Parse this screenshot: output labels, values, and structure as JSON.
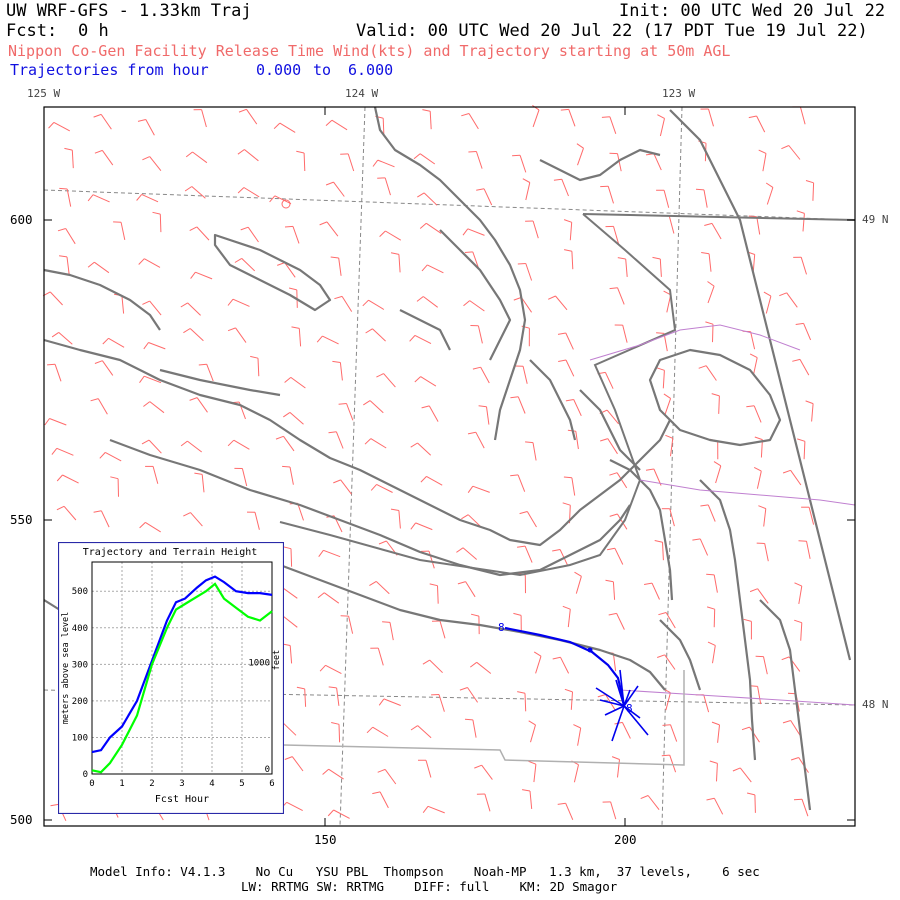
{
  "header": {
    "model_title": "UW WRF-GFS - 1.33km Traj",
    "init": "Init: 00 UTC Wed 20 Jul 22",
    "fcst_label": "Fcst:",
    "fcst_value": "0 h",
    "valid": "Valid: 00 UTC Wed 20 Jul 22 (17 PDT Tue 19 Jul 22)",
    "release_line": "Nippon Co-Gen Facility Release Time Wind(kts) and Trajectory starting at 50m AGL",
    "traj_line": "Trajectories from hour",
    "traj_from": "0.000",
    "traj_to_word": "to",
    "traj_to": "6.000"
  },
  "map": {
    "lon_labels": [
      "125 W",
      "124 W",
      "123 W"
    ],
    "lat_labels": [
      "49 N",
      "48 N"
    ],
    "y_ticks": [
      "600",
      "550",
      "500"
    ],
    "x_ticks": [
      "150",
      "200"
    ],
    "traj_marker_start": "8",
    "traj_marker_end": "8"
  },
  "inset": {
    "title": "Trajectory and Terrain Height",
    "y_label": "meters above sea level",
    "y2_label": "feet",
    "y2_tick": "1000",
    "y2_zero": "0",
    "x_label": "Fcst Hour",
    "y_ticks": [
      "0",
      "100",
      "200",
      "300",
      "400",
      "500"
    ],
    "x_ticks": [
      "0",
      "1",
      "2",
      "3",
      "4",
      "5",
      "6"
    ]
  },
  "chart_data": {
    "type": "line",
    "title": "Trajectory and Terrain Height",
    "xlabel": "Fcst Hour",
    "ylabel": "meters above sea level",
    "xlim": [
      0,
      6
    ],
    "ylim": [
      0,
      580
    ],
    "grid": true,
    "series": [
      {
        "color": "#0000ff",
        "x": [
          0,
          0.3,
          0.6,
          1.0,
          1.5,
          2.0,
          2.5,
          2.8,
          3.1,
          3.5,
          3.8,
          4.1,
          4.4,
          4.8,
          5.2,
          5.6,
          6.0
        ],
        "y": [
          60,
          65,
          100,
          130,
          200,
          310,
          420,
          470,
          480,
          510,
          530,
          540,
          525,
          500,
          495,
          495,
          490
        ]
      },
      {
        "color": "#00ff00",
        "x": [
          0,
          0.3,
          0.6,
          1.0,
          1.5,
          2.0,
          2.5,
          2.8,
          3.1,
          3.5,
          3.8,
          4.1,
          4.4,
          4.8,
          5.2,
          5.6,
          6.0
        ],
        "y": [
          10,
          5,
          30,
          80,
          160,
          300,
          400,
          450,
          465,
          485,
          500,
          520,
          480,
          455,
          430,
          420,
          445
        ]
      }
    ]
  },
  "footer": {
    "line1": "Model Info: V4.1.3    No Cu   YSU PBL  Thompson    Noah-MP   1.3 km,  37 levels,    6 sec",
    "line2": "LW: RRTMG SW: RRTMG    DIFF: full    KM: 2D Smagor"
  },
  "colors": {
    "coast": "#777777",
    "wind": "#ff6a6a",
    "traj": "#0000ee",
    "county": "#c080d0",
    "frame": "#000000"
  }
}
